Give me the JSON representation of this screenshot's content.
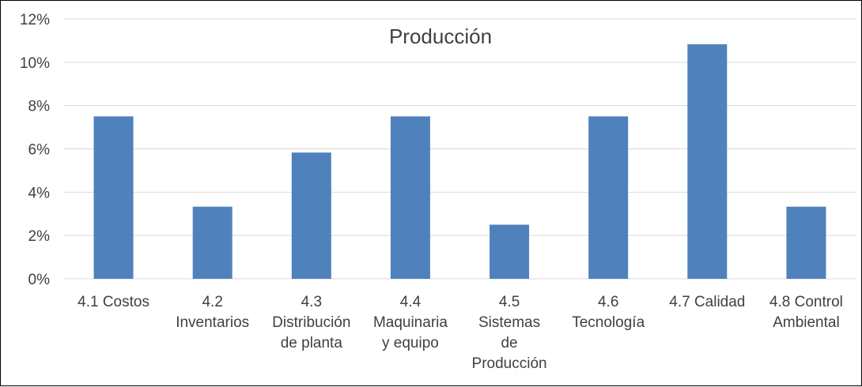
{
  "chart_data": {
    "type": "bar",
    "title": "Producción",
    "xlabel": "",
    "ylabel": "",
    "categories": [
      "4.1 Costos",
      "4.2 Inventarios",
      "4.3 Distribución de planta",
      "4.4 Maquinaria y equipo",
      "4.5 Sistemas de Producción",
      "4.6 Tecnología",
      "4.7 Calidad",
      "4.8 Control Ambiental"
    ],
    "category_lines": [
      [
        "4.1 Costos"
      ],
      [
        "4.2",
        "Inventarios"
      ],
      [
        "4.3",
        "Distribución",
        "de planta"
      ],
      [
        "4.4",
        "Maquinaria",
        "y equipo"
      ],
      [
        "4.5",
        "Sistemas",
        "de",
        "Producción"
      ],
      [
        "4.6",
        "Tecnología"
      ],
      [
        "4.7 Calidad"
      ],
      [
        "4.8 Control",
        "Ambiental"
      ]
    ],
    "values": [
      7.5,
      3.33,
      5.83,
      7.5,
      2.5,
      7.5,
      10.83,
      3.33
    ],
    "ylim": [
      0,
      12
    ],
    "yticks": [
      "0%",
      "2%",
      "4%",
      "6%",
      "8%",
      "10%",
      "12%"
    ],
    "grid": true,
    "legend": "none",
    "bar_color": "#4f81bd",
    "grid_color": "#d9d9d9"
  }
}
